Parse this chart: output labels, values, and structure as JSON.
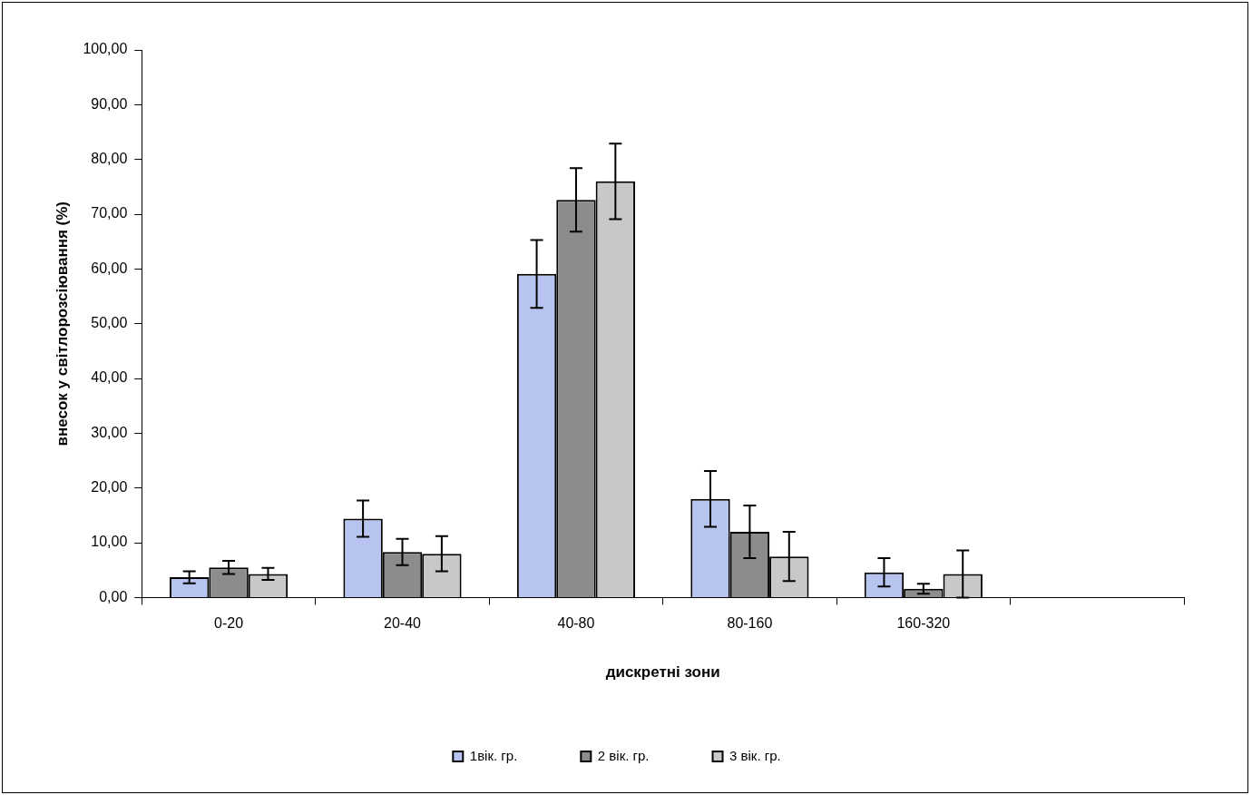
{
  "chart_data": {
    "type": "bar",
    "xlabel": "дискретні зони",
    "ylabel": "внесок у світлорозсіювання (%)",
    "categories": [
      "0-20",
      "20-40",
      "40-80",
      "80-160",
      "160-320",
      null
    ],
    "series": [
      {
        "name": "1вік. гр.",
        "color": "#b8c4f0",
        "values": [
          3.7,
          14.4,
          59.1,
          18.0,
          4.6,
          null
        ],
        "errors": [
          1.1,
          3.3,
          6.2,
          5.1,
          2.6,
          null
        ]
      },
      {
        "name": "2 вік. гр.",
        "color": "#8c8c8c",
        "values": [
          5.5,
          8.3,
          72.6,
          12.0,
          1.6,
          null
        ],
        "errors": [
          1.2,
          2.4,
          5.8,
          4.8,
          0.9,
          null
        ]
      },
      {
        "name": "3 вік. гр.",
        "color": "#c8c8c8",
        "values": [
          4.3,
          8.0,
          76.0,
          7.5,
          4.3,
          null
        ],
        "errors": [
          1.1,
          3.2,
          6.9,
          4.5,
          4.3,
          null
        ]
      }
    ],
    "ylim": [
      0,
      100
    ],
    "yticks": [
      {
        "value": 0,
        "label": "0,00"
      },
      {
        "value": 10,
        "label": "10,00"
      },
      {
        "value": 20,
        "label": "20,00"
      },
      {
        "value": 30,
        "label": "30,00"
      },
      {
        "value": 40,
        "label": "40,00"
      },
      {
        "value": 50,
        "label": "50,00"
      },
      {
        "value": 60,
        "label": "60,00"
      },
      {
        "value": 70,
        "label": "70,00"
      },
      {
        "value": 80,
        "label": "80,00"
      },
      {
        "value": 90,
        "label": "90,00"
      },
      {
        "value": 100,
        "label": "100,00"
      }
    ],
    "grid": false,
    "legend": "bottom"
  }
}
